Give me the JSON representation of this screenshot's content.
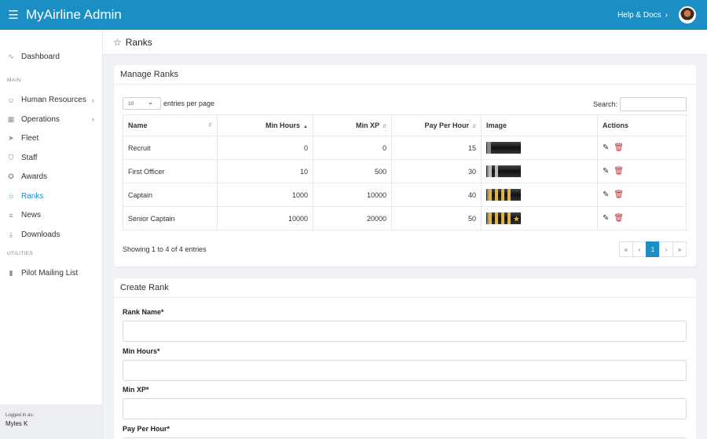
{
  "header": {
    "app_title": "MyAirline Admin",
    "help_label": "Help & Docs",
    "help_chevron": "›",
    "menu_icon": "☰"
  },
  "sidebar": {
    "items_top": [
      {
        "label": "Dashboard",
        "icon": "activity-icon",
        "glyph": "∿"
      }
    ],
    "section_main": "MAIN",
    "items_main": [
      {
        "label": "Human Resources",
        "icon": "user-icon",
        "glyph": "☺",
        "arrow": "›"
      },
      {
        "label": "Operations",
        "icon": "grid-icon",
        "glyph": "▦",
        "arrow": "›"
      },
      {
        "label": "Fleet",
        "icon": "send-icon",
        "glyph": "➤"
      },
      {
        "label": "Staff",
        "icon": "shield-icon",
        "glyph": "⛉"
      },
      {
        "label": "Awards",
        "icon": "award-icon",
        "glyph": "✪"
      },
      {
        "label": "Ranks",
        "icon": "star-icon",
        "glyph": "☆",
        "active": true
      },
      {
        "label": "News",
        "icon": "list-icon",
        "glyph": "≡"
      },
      {
        "label": "Downloads",
        "icon": "download-icon",
        "glyph": "⤓"
      }
    ],
    "section_utilities": "UTILITIES",
    "items_utilities": [
      {
        "label": "Pilot Mailing List",
        "icon": "bar-chart-icon",
        "glyph": "▮"
      }
    ],
    "footer_label": "Logged in as:",
    "footer_user": "Myles K"
  },
  "page": {
    "title": "Ranks"
  },
  "manage": {
    "card_title": "Manage Ranks",
    "page_size": "10",
    "entries_label": "entries per page",
    "search_label": "Search:",
    "columns": [
      "Name",
      "Min Hours",
      "Min XP",
      "Pay Per Hour",
      "Image",
      "Actions"
    ],
    "rows": [
      {
        "name": "Recruit",
        "min_hours": "0",
        "min_xp": "0",
        "pay": "15",
        "stripes": 0,
        "star": false
      },
      {
        "name": "First Officer",
        "min_hours": "10",
        "min_xp": "500",
        "pay": "30",
        "stripes": 2,
        "star": false
      },
      {
        "name": "Captain",
        "min_hours": "1000",
        "min_xp": "10000",
        "pay": "40",
        "stripes": 4,
        "star": false
      },
      {
        "name": "Senior Captain",
        "min_hours": "10000",
        "min_xp": "20000",
        "pay": "50",
        "stripes": 4,
        "star": true
      }
    ],
    "info": "Showing 1 to 4 of 4 entries",
    "pager": [
      "«",
      "‹",
      "1",
      "›",
      "»"
    ]
  },
  "create": {
    "card_title": "Create Rank",
    "fields": [
      "Rank Name*",
      "Min Hours*",
      "Min XP*",
      "Pay Per Hour*"
    ]
  },
  "colors": {
    "brand": "#1b8fc4",
    "danger": "#d9262e",
    "gold": "#e2b247"
  }
}
